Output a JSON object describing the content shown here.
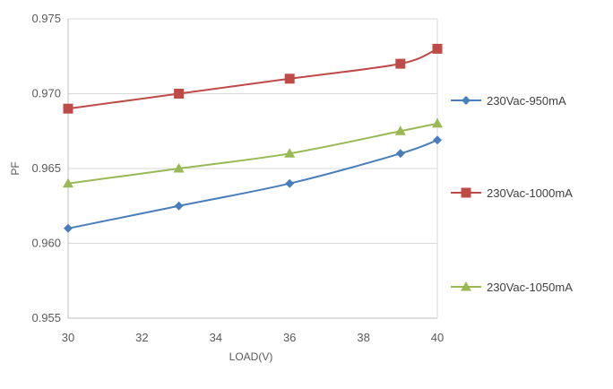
{
  "chart_data": {
    "type": "line",
    "title": "",
    "xlabel": "LOAD(V)",
    "ylabel": "PF",
    "xlim": [
      30,
      40
    ],
    "ylim": [
      0.955,
      0.975
    ],
    "x_ticks": [
      30,
      32,
      34,
      36,
      38,
      40
    ],
    "y_ticks": [
      0.955,
      0.96,
      0.965,
      0.97,
      0.975
    ],
    "x_tick_labels": [
      "30",
      "32",
      "34",
      "36",
      "38",
      "40"
    ],
    "y_tick_labels": [
      "0.955",
      "0.960",
      "0.965",
      "0.970",
      "0.975"
    ],
    "grid": "horizontal",
    "legend_position": "right",
    "series": [
      {
        "name": "230Vac-950mA",
        "color": "#4a7ebb",
        "marker": "diamond",
        "points": [
          [
            30,
            0.961
          ],
          [
            33,
            0.9625
          ],
          [
            36,
            0.964
          ],
          [
            39,
            0.966
          ],
          [
            40,
            0.9669
          ]
        ]
      },
      {
        "name": "230Vac-1000mA",
        "color": "#be4b48",
        "marker": "square",
        "points": [
          [
            30,
            0.969
          ],
          [
            33,
            0.97
          ],
          [
            36,
            0.971
          ],
          [
            39,
            0.972
          ],
          [
            40,
            0.973
          ]
        ]
      },
      {
        "name": "230Vac-1050mA",
        "color": "#98b954",
        "marker": "triangle",
        "points": [
          [
            30,
            0.964
          ],
          [
            33,
            0.965
          ],
          [
            36,
            0.966
          ],
          [
            39,
            0.9675
          ],
          [
            40,
            0.968
          ]
        ]
      }
    ]
  }
}
